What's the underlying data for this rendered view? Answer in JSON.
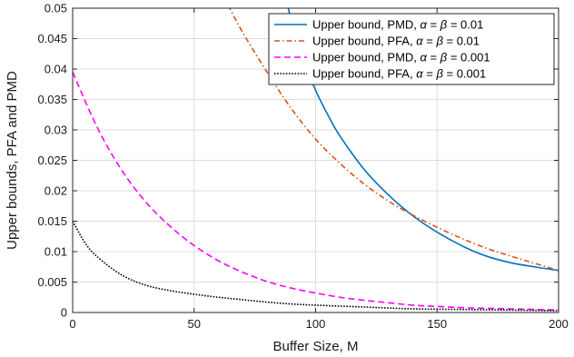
{
  "chart_data": {
    "type": "line",
    "xlabel": "Buffer Size, M",
    "ylabel": "Upper bounds, PFA and PMD",
    "xlim": [
      0,
      200
    ],
    "ylim": [
      0,
      0.05
    ],
    "xticks": [
      0,
      50,
      100,
      150,
      200
    ],
    "xtick_labels": [
      "0",
      "50",
      "100",
      "150",
      "200"
    ],
    "yticks": [
      0,
      0.005,
      0.01,
      0.015,
      0.02,
      0.025,
      0.03,
      0.035,
      0.04,
      0.045,
      0.05
    ],
    "ytick_labels": [
      "0",
      "0.005",
      "0.01",
      "0.015",
      "0.02",
      "0.025",
      "0.03",
      "0.035",
      "0.04",
      "0.045",
      "0.05"
    ],
    "grid": true,
    "legend_position": "top-right",
    "series": [
      {
        "name": "Upper bound, PMD, α = β = 0.01",
        "legend_parts": [
          "Upper bound, PMD, ",
          "α",
          " = ",
          "β",
          " = 0.01"
        ],
        "color": "#0072BD",
        "dash": "solid",
        "x": [
          88,
          90,
          95,
          100,
          105,
          110,
          120,
          130,
          140,
          150,
          160,
          170,
          180,
          190,
          200
        ],
        "y": [
          0.0514,
          0.048,
          0.0415,
          0.0365,
          0.0325,
          0.029,
          0.0235,
          0.0193,
          0.0159,
          0.0132,
          0.011,
          0.0093,
          0.0082,
          0.0075,
          0.0069
        ]
      },
      {
        "name": "Upper bound, PFA, α = β = 0.01",
        "legend_parts": [
          "Upper bound, PFA, ",
          "α",
          " = ",
          "β",
          " = 0.01"
        ],
        "color": "#D95319",
        "dash": "dashdot",
        "x": [
          64,
          70,
          80,
          90,
          100,
          110,
          120,
          130,
          140,
          150,
          160,
          170,
          180,
          190,
          200
        ],
        "y": [
          0.0505,
          0.046,
          0.0395,
          0.0335,
          0.0285,
          0.0245,
          0.0211,
          0.0183,
          0.016,
          0.014,
          0.0122,
          0.0106,
          0.0093,
          0.0081,
          0.0069
        ]
      },
      {
        "name": "Upper bound, PMD, α = β = 0.001",
        "legend_parts": [
          "Upper bound, PMD, ",
          "α",
          " = ",
          "β",
          " = 0.001"
        ],
        "color": "#FF00FF",
        "dash": "dashed",
        "x": [
          0,
          10,
          20,
          30,
          40,
          50,
          60,
          70,
          80,
          90,
          100,
          110,
          120,
          130,
          140,
          150,
          160,
          170,
          180,
          190,
          200
        ],
        "y": [
          0.0395,
          0.0305,
          0.0235,
          0.0182,
          0.0142,
          0.011,
          0.0085,
          0.0066,
          0.0051,
          0.004,
          0.0032,
          0.0025,
          0.002,
          0.0016,
          0.0012,
          0.001,
          0.0008,
          0.0007,
          0.0006,
          0.0005,
          0.0004
        ]
      },
      {
        "name": "Upper bound, PFA, α = β = 0.001",
        "legend_parts": [
          "Upper bound, PFA, ",
          "α",
          " = ",
          "β",
          " = 0.001"
        ],
        "color": "#000000",
        "dash": "dotted",
        "x": [
          0,
          5,
          10,
          20,
          30,
          40,
          50,
          60,
          70,
          80,
          90,
          100,
          120,
          140,
          160,
          180,
          200
        ],
        "y": [
          0.015,
          0.0115,
          0.0092,
          0.0062,
          0.0045,
          0.0036,
          0.003,
          0.0025,
          0.0021,
          0.0017,
          0.0014,
          0.0012,
          0.0009,
          0.0006,
          0.0005,
          0.0004,
          0.0003
        ]
      }
    ]
  }
}
